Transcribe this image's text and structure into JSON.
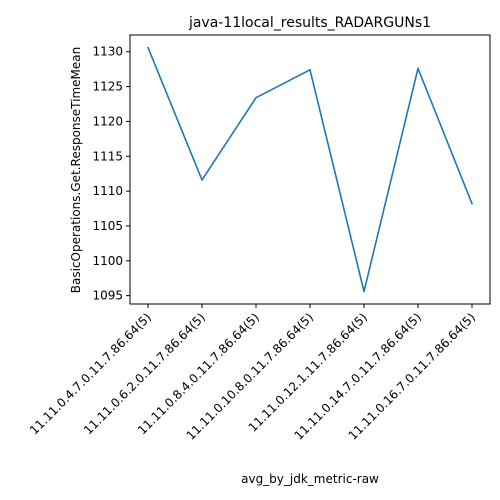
{
  "chart_data": {
    "type": "line",
    "title": "java-11local_results_RADARGUNs1",
    "xlabel": "avg_by_jdk_metric-raw",
    "ylabel": "BasicOperations.Get.ResponseTimeMean",
    "categories": [
      "11.11.0.4.7.0.11.7.86.64(5)",
      "11.11.0.6.2.0.11.7.86.64(5)",
      "11.11.0.8.4.0.11.7.86.64(5)",
      "11.11.0.10.8.0.11.7.86.64(5)",
      "11.11.0.12.1.11.7.86.64(5)",
      "11.11.0.14.7.0.11.7.86.64(5)",
      "11.11.0.16.7.0.11.7.86.64(5)"
    ],
    "series": [
      {
        "name": "BasicOperations.Get.ResponseTimeMean",
        "values": [
          1130.6,
          1111.6,
          1123.4,
          1127.4,
          1095.6,
          1127.6,
          1108.2
        ]
      }
    ],
    "yticks": [
      1095,
      1100,
      1105,
      1110,
      1115,
      1120,
      1125,
      1130
    ],
    "ylim": [
      1093.8,
      1132.4
    ],
    "grid": false,
    "legend": "none",
    "line_color": "#1f77b4"
  }
}
